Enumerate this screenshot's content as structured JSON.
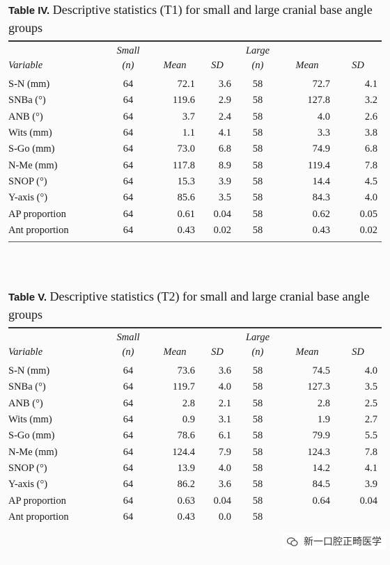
{
  "header": {
    "small": "Small",
    "large": "Large",
    "variable": "Variable",
    "n": "(n)",
    "mean": "Mean",
    "sd": "SD"
  },
  "tables": [
    {
      "label": "Table IV.",
      "title": "Descriptive statistics (T1) for small and large cranial base angle groups",
      "rows": [
        [
          "S-N (mm)",
          "64",
          "72.1",
          "3.6",
          "58",
          "72.7",
          "4.1"
        ],
        [
          "SNBa (°)",
          "64",
          "119.6",
          "2.9",
          "58",
          "127.8",
          "3.2"
        ],
        [
          "ANB (°)",
          "64",
          "3.7",
          "2.4",
          "58",
          "4.0",
          "2.6"
        ],
        [
          "Wits (mm)",
          "64",
          "1.1",
          "4.1",
          "58",
          "3.3",
          "3.8"
        ],
        [
          "S-Go (mm)",
          "64",
          "73.0",
          "6.8",
          "58",
          "74.9",
          "6.8"
        ],
        [
          "N-Me (mm)",
          "64",
          "117.8",
          "8.9",
          "58",
          "119.4",
          "7.8"
        ],
        [
          "SNOP (°)",
          "64",
          "15.3",
          "3.9",
          "58",
          "14.4",
          "4.5"
        ],
        [
          "Y-axis (°)",
          "64",
          "85.6",
          "3.5",
          "58",
          "84.3",
          "4.0"
        ],
        [
          "AP proportion",
          "64",
          "0.61",
          "0.04",
          "58",
          "0.62",
          "0.05"
        ],
        [
          "Ant proportion",
          "64",
          "0.43",
          "0.02",
          "58",
          "0.43",
          "0.02"
        ]
      ]
    },
    {
      "label": "Table V.",
      "title": "Descriptive statistics (T2) for small and large cranial base angle groups",
      "rows": [
        [
          "S-N (mm)",
          "64",
          "73.6",
          "3.6",
          "58",
          "74.5",
          "4.0"
        ],
        [
          "SNBa (°)",
          "64",
          "119.7",
          "4.0",
          "58",
          "127.3",
          "3.5"
        ],
        [
          "ANB (°)",
          "64",
          "2.8",
          "2.1",
          "58",
          "2.8",
          "2.5"
        ],
        [
          "Wits (mm)",
          "64",
          "0.9",
          "3.1",
          "58",
          "1.9",
          "2.7"
        ],
        [
          "S-Go (mm)",
          "64",
          "78.6",
          "6.1",
          "58",
          "79.9",
          "5.5"
        ],
        [
          "N-Me (mm)",
          "64",
          "124.4",
          "7.9",
          "58",
          "124.3",
          "7.8"
        ],
        [
          "SNOP (°)",
          "64",
          "13.9",
          "4.0",
          "58",
          "14.2",
          "4.1"
        ],
        [
          "Y-axis (°)",
          "64",
          "86.2",
          "3.6",
          "58",
          "84.5",
          "3.9"
        ],
        [
          "AP proportion",
          "64",
          "0.63",
          "0.04",
          "58",
          "0.64",
          "0.04"
        ],
        [
          "Ant proportion",
          "64",
          "0.43",
          "0.0",
          "58",
          "",
          ""
        ]
      ]
    }
  ],
  "watermark": {
    "text": "新一口腔正畸医学",
    "icon": "wechat-icon"
  }
}
